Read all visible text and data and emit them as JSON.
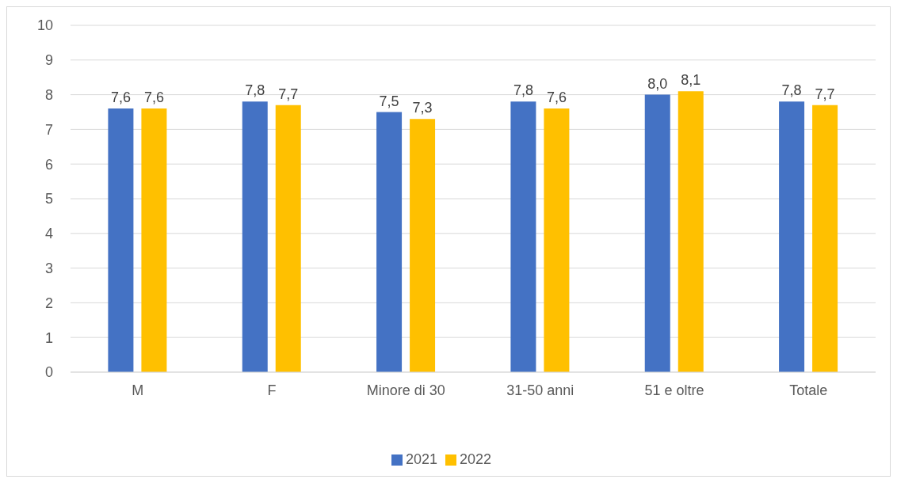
{
  "chart_data": {
    "type": "bar",
    "categories": [
      "M",
      "F",
      "Minore di 30",
      "31-50 anni",
      "51 e oltre",
      "Totale"
    ],
    "series": [
      {
        "name": "2021",
        "color": "#4472c4",
        "values": [
          7.6,
          7.8,
          7.5,
          7.8,
          8.0,
          7.8
        ],
        "value_labels": [
          "7,6",
          "7,8",
          "7,5",
          "7,8",
          "8,0",
          "7,8"
        ]
      },
      {
        "name": "2022",
        "color": "#ffc000",
        "values": [
          7.6,
          7.7,
          7.3,
          7.6,
          8.1,
          7.7
        ],
        "value_labels": [
          "7,6",
          "7,7",
          "7,3",
          "7,6",
          "8,1",
          "7,7"
        ]
      }
    ],
    "ylim": [
      0,
      10
    ],
    "yticks": [
      0,
      1,
      2,
      3,
      4,
      5,
      6,
      7,
      8,
      9,
      10
    ],
    "grid": "y",
    "legend": "bottom"
  }
}
